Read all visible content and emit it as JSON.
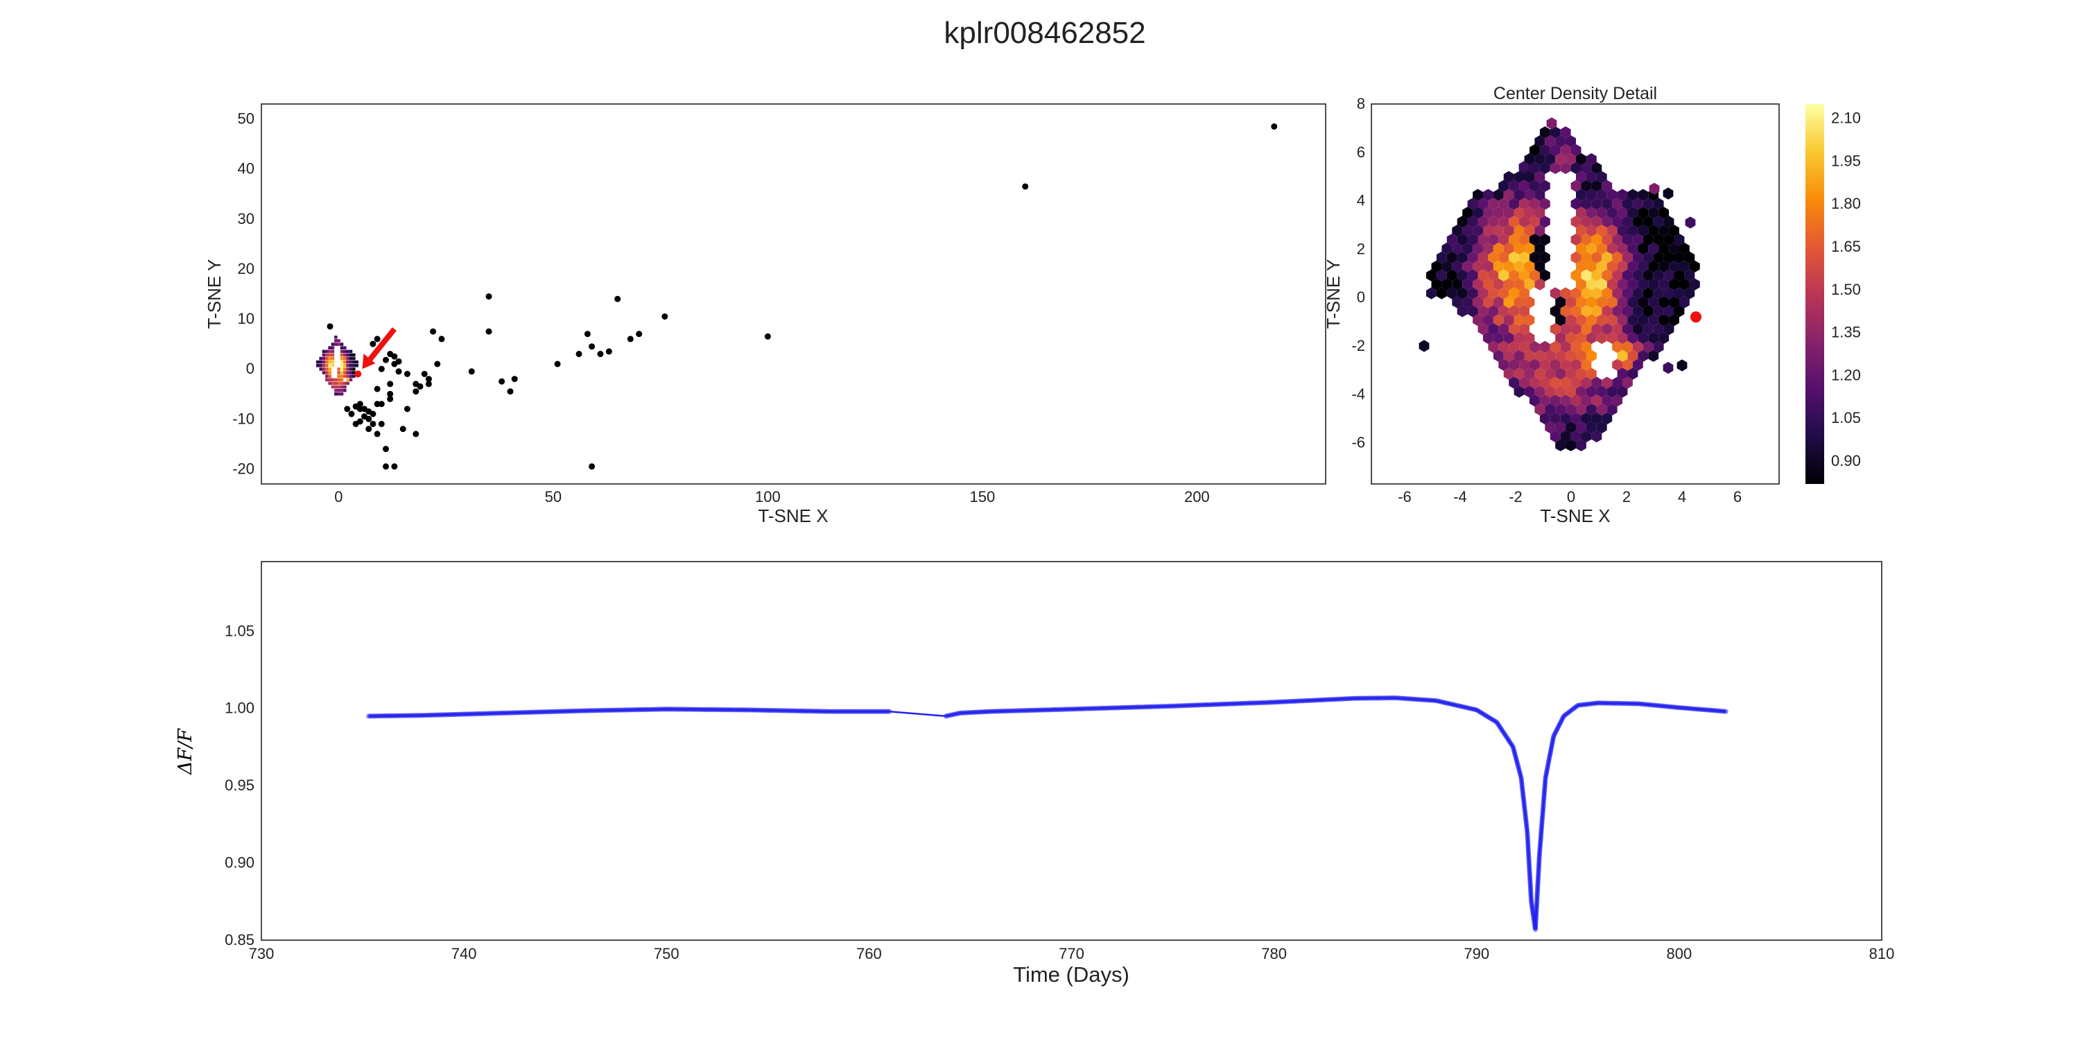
{
  "figure": {
    "title": "kplr008462852"
  },
  "chart_data": [
    {
      "id": "tsne_overview",
      "type": "scatter",
      "title": "",
      "xlabel": "T-SNE X",
      "ylabel": "T-SNE Y",
      "xlim": [
        -18,
        230
      ],
      "ylim": [
        -23,
        53
      ],
      "xticks": [
        0,
        50,
        100,
        150,
        200
      ],
      "yticks": [
        -20,
        -10,
        0,
        10,
        20,
        30,
        40,
        50
      ],
      "grid": false,
      "marker_color": "#000000",
      "outlier_points": [
        [
          218,
          48.5
        ],
        [
          160,
          36.5
        ],
        [
          100,
          6.5
        ],
        [
          76,
          10.5
        ],
        [
          70,
          7
        ],
        [
          68,
          6
        ],
        [
          65,
          14
        ],
        [
          63,
          3.5
        ],
        [
          61,
          3
        ],
        [
          59,
          4.5
        ],
        [
          58,
          7
        ],
        [
          59,
          -19.5
        ],
        [
          56,
          3
        ],
        [
          51,
          1
        ],
        [
          41,
          -2
        ],
        [
          40,
          -4.5
        ],
        [
          38,
          -2.5
        ],
        [
          35,
          14.5
        ],
        [
          35,
          7.5
        ],
        [
          31,
          -0.5
        ],
        [
          24,
          6
        ],
        [
          22,
          7.5
        ],
        [
          23,
          1
        ],
        [
          21,
          -2
        ],
        [
          21,
          -3
        ],
        [
          20,
          -1
        ],
        [
          19,
          -3.5
        ],
        [
          18,
          -3
        ],
        [
          18,
          -4.5
        ],
        [
          18,
          -13
        ],
        [
          16,
          -1
        ],
        [
          16,
          -8
        ],
        [
          15,
          -12
        ],
        [
          14,
          1.5
        ],
        [
          14,
          -0.5
        ],
        [
          13,
          2.5
        ],
        [
          13,
          1
        ],
        [
          12,
          3
        ],
        [
          12,
          -3
        ],
        [
          12,
          -5
        ],
        [
          12,
          -6
        ],
        [
          11,
          -16
        ],
        [
          11,
          -19.5
        ],
        [
          13,
          -19.5
        ],
        [
          10,
          -7
        ],
        [
          10,
          -11
        ],
        [
          9,
          -13
        ],
        [
          9,
          -4
        ],
        [
          9,
          -7
        ],
        [
          8,
          -9
        ],
        [
          8,
          -11
        ],
        [
          7,
          -12
        ],
        [
          7,
          -10
        ],
        [
          6,
          -8
        ],
        [
          6,
          -9.5
        ],
        [
          5,
          -10.5
        ],
        [
          5,
          -8
        ],
        [
          8,
          5
        ],
        [
          9,
          6
        ],
        [
          3,
          -9
        ],
        [
          4,
          -11
        ],
        [
          2,
          -8
        ],
        [
          -2,
          8.5
        ],
        [
          10,
          0
        ],
        [
          11,
          1.8
        ],
        [
          7,
          -8.5
        ],
        [
          5,
          -7
        ],
        [
          4,
          -7.5
        ]
      ],
      "cluster_center": [
        0,
        0
      ],
      "annotation": {
        "arrow_tail": [
          13,
          8
        ],
        "arrow_head": [
          5.5,
          0
        ],
        "highlight_point": [
          4.5,
          -1
        ],
        "color": "#ee1111"
      }
    },
    {
      "id": "center_density",
      "type": "heatmap",
      "title": "Center Density Detail",
      "xlabel": "T-SNE X",
      "ylabel": "T-SNE Y",
      "xlim": [
        -7.2,
        7.5
      ],
      "ylim": [
        -7.7,
        8
      ],
      "xticks": [
        -6,
        -4,
        -2,
        0,
        2,
        4,
        6
      ],
      "yticks": [
        -6,
        -4,
        -2,
        0,
        2,
        4,
        6,
        8
      ],
      "colormap": "inferno",
      "highlight_point": [
        4.5,
        -0.8
      ],
      "highlight_color": "#ee1111",
      "colorbar": {
        "ticks": [
          "0.90",
          "1.05",
          "1.20",
          "1.35",
          "1.50",
          "1.65",
          "1.80",
          "1.95",
          "2.10"
        ],
        "min": 0.82,
        "max": 2.15
      }
    },
    {
      "id": "light_curve",
      "type": "line",
      "title": "",
      "xlabel": "Time (Days)",
      "ylabel": "ΔF/F",
      "xlim": [
        730,
        810
      ],
      "ylim": [
        0.85,
        1.095
      ],
      "xticks": [
        730,
        740,
        750,
        760,
        770,
        780,
        790,
        800,
        810
      ],
      "yticks": [
        "0.85",
        "0.90",
        "0.95",
        "1.00",
        "1.05"
      ],
      "color": "#2222ee",
      "segments": [
        {
          "x": [
            735.3,
            738,
            742,
            746,
            750,
            754,
            758,
            761
          ],
          "y": [
            0.995,
            0.9955,
            0.997,
            0.9985,
            0.9995,
            0.999,
            0.998,
            0.998
          ]
        },
        {
          "x": [
            763.8,
            764.5,
            766,
            770,
            775,
            780,
            784,
            786,
            788,
            790,
            791,
            791.8,
            792.2,
            792.5,
            792.7,
            792.9,
            793.1,
            793.4,
            793.8,
            794.3,
            795,
            796,
            798,
            800,
            802.3
          ],
          "y": [
            0.995,
            0.997,
            0.998,
            0.9995,
            1.0015,
            1.004,
            1.0065,
            1.0068,
            1.005,
            0.999,
            0.991,
            0.975,
            0.955,
            0.92,
            0.875,
            0.857,
            0.905,
            0.955,
            0.982,
            0.995,
            1.002,
            1.0035,
            1.003,
            1.0005,
            0.998
          ]
        }
      ]
    }
  ]
}
